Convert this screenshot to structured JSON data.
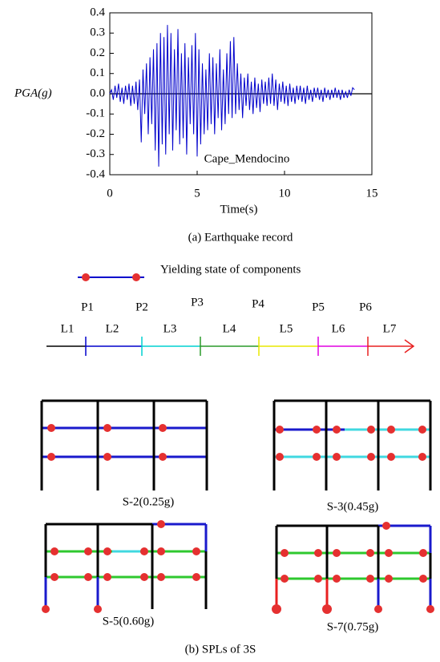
{
  "chart_data": {
    "type": "line",
    "ylabel": "PGA(g)",
    "xlabel": "Time(s)",
    "annotation": "Cape_Mendocino",
    "x": [
      0,
      0.1,
      0.2,
      0.3,
      0.4,
      0.5,
      0.6,
      0.7,
      0.8,
      0.9,
      1,
      1.1,
      1.2,
      1.3,
      1.4,
      1.5,
      1.6,
      1.7,
      1.8,
      1.9,
      2,
      2.1,
      2.2,
      2.3,
      2.4,
      2.5,
      2.6,
      2.7,
      2.8,
      2.9,
      3,
      3.1,
      3.2,
      3.3,
      3.4,
      3.5,
      3.6,
      3.7,
      3.8,
      3.9,
      4,
      4.1,
      4.2,
      4.3,
      4.4,
      4.5,
      4.6,
      4.7,
      4.8,
      4.9,
      5,
      5.1,
      5.2,
      5.3,
      5.4,
      5.5,
      5.6,
      5.7,
      5.8,
      5.9,
      6,
      6.1,
      6.2,
      6.3,
      6.4,
      6.5,
      6.6,
      6.7,
      6.8,
      6.9,
      7,
      7.1,
      7.2,
      7.3,
      7.4,
      7.5,
      7.6,
      7.7,
      7.8,
      7.9,
      8,
      8.1,
      8.2,
      8.3,
      8.4,
      8.5,
      8.6,
      8.7,
      8.8,
      8.9,
      9,
      9.1,
      9.2,
      9.3,
      9.4,
      9.5,
      9.6,
      9.7,
      9.8,
      9.9,
      10,
      10.1,
      10.2,
      10.3,
      10.4,
      10.5,
      10.6,
      10.7,
      10.8,
      10.9,
      11,
      11.1,
      11.2,
      11.3,
      11.4,
      11.5,
      11.6,
      11.7,
      11.8,
      11.9,
      12,
      12.1,
      12.2,
      12.3,
      12.4,
      12.5,
      12.6,
      12.7,
      12.8,
      12.9,
      13,
      13.1,
      13.2,
      13.3,
      13.4,
      13.5,
      13.6,
      13.7,
      13.8,
      13.9,
      14
    ],
    "series": [
      {
        "name": "Cape_Mendocino",
        "color": "#0000cc",
        "values": [
          0,
          0.02,
          -0.03,
          0.04,
          -0.02,
          0.05,
          -0.04,
          0.03,
          -0.05,
          0.04,
          -0.03,
          0.05,
          -0.06,
          0.04,
          -0.05,
          0.06,
          -0.08,
          0.07,
          -0.24,
          0.12,
          -0.1,
          0.15,
          -0.2,
          0.18,
          -0.15,
          0.22,
          -0.28,
          0.25,
          -0.36,
          0.3,
          -0.25,
          0.28,
          -0.3,
          0.34,
          -0.2,
          0.3,
          -0.28,
          0.22,
          -0.18,
          0.32,
          -0.25,
          0.2,
          -0.22,
          0.25,
          -0.3,
          0.18,
          -0.15,
          0.24,
          -0.2,
          0.3,
          -0.31,
          0.22,
          -0.25,
          0.15,
          -0.2,
          0.12,
          -0.18,
          0.2,
          -0.15,
          0.18,
          -0.2,
          0.15,
          -0.12,
          0.22,
          -0.18,
          0.12,
          -0.15,
          0.2,
          -0.1,
          0.26,
          -0.12,
          0.28,
          -0.1,
          0.15,
          -0.08,
          0.1,
          -0.12,
          0.08,
          -0.06,
          0.1,
          -0.08,
          0.06,
          -0.1,
          0.08,
          -0.07,
          0.05,
          -0.09,
          0.07,
          -0.05,
          0.06,
          -0.06,
          0.08,
          -0.05,
          0.1,
          -0.06,
          0.07,
          -0.08,
          0.05,
          -0.04,
          0.06,
          -0.05,
          0.04,
          -0.06,
          0.05,
          -0.04,
          0.03,
          -0.05,
          0.04,
          -0.03,
          0.04,
          -0.04,
          0.03,
          -0.05,
          0.04,
          -0.03,
          0.02,
          -0.04,
          0.03,
          -0.02,
          0.03,
          -0.03,
          0.02,
          -0.04,
          0.03,
          -0.02,
          0.02,
          -0.03,
          0.02,
          -0.02,
          0.03,
          -0.02,
          0.02,
          -0.03,
          0.02,
          -0.02,
          0.01,
          -0.02,
          0.02,
          -0.01,
          0.03,
          0.02
        ]
      }
    ],
    "xlim": [
      0,
      15
    ],
    "xticks": [
      0,
      5,
      10,
      15
    ],
    "ylim": [
      -0.4,
      0.4
    ],
    "yticks": [
      -0.4,
      -0.3,
      -0.2,
      -0.1,
      {
        "value": 0,
        "label": "0.0"
      },
      0.1,
      0.2,
      0.3,
      0.4
    ]
  },
  "caption_a": "(a) Earthquake record",
  "legend_label": "Yielding state of components",
  "timeline": {
    "points": [
      "P1",
      "P2",
      "P3",
      "P4",
      "P5",
      "P6"
    ],
    "segments": [
      "L1",
      "L2",
      "L3",
      "L4",
      "L5",
      "L6",
      "L7"
    ]
  },
  "frames": [
    "S-2(0.25g)",
    "S-3(0.45g)",
    "S-5(0.60g)",
    "S-7(0.75g)"
  ],
  "caption_b": "(b) SPLs of 3S"
}
